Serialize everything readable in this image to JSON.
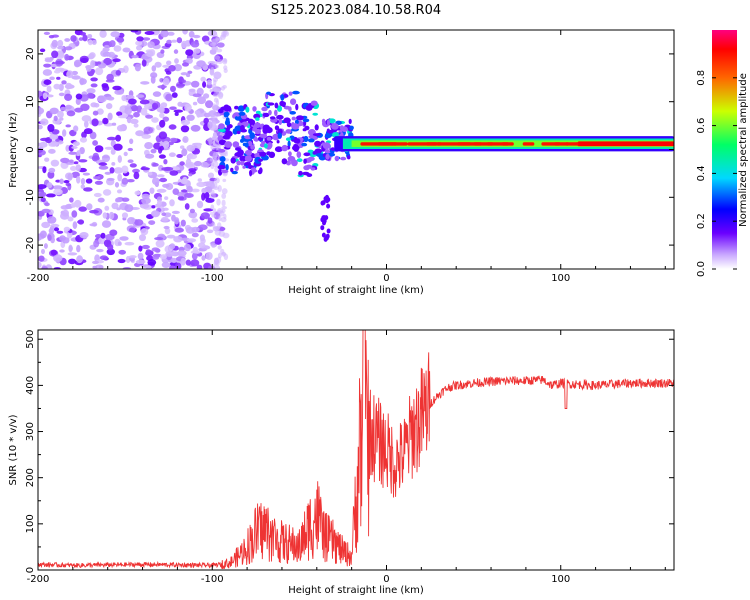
{
  "title": "S125.2023.084.10.58.R04",
  "chart_data": [
    {
      "type": "heatmap",
      "xlabel": "Height of straight line (km)",
      "ylabel": "Frequency (Hz)",
      "xlim": [
        -200,
        165
      ],
      "ylim": [
        -25,
        25
      ],
      "x_ticks": [
        -200,
        -100,
        0,
        100
      ],
      "y_ticks": [
        20,
        10,
        0,
        -10,
        -20
      ],
      "colorbar": {
        "label": "Normalized spectral amplitude",
        "range": [
          0,
          1
        ],
        "ticks": [
          0.0,
          0.2,
          0.4,
          0.6,
          0.8
        ],
        "colors": [
          "#ffffff",
          "#c9a8ff",
          "#6a00ff",
          "#0000ff",
          "#00d8ff",
          "#00ff66",
          "#ccff00",
          "#ff6600",
          "#ff0000",
          "#ff007f"
        ]
      },
      "regions": [
        {
          "x_range": [
            -200,
            -95
          ],
          "y_range": [
            -25,
            25
          ],
          "amplitude": 0.05
        },
        {
          "x_range": [
            -100,
            -20
          ],
          "y_range": [
            -8,
            12
          ],
          "amplitude": 0.2
        },
        {
          "x_range": [
            -30,
            165
          ],
          "y_range": [
            0,
            2.5
          ],
          "amplitude": 0.9
        }
      ]
    },
    {
      "type": "line",
      "xlabel": "Height of straight line (km)",
      "ylabel": "SNR (10 * v/v)",
      "xlim": [
        -200,
        165
      ],
      "ylim": [
        0,
        520
      ],
      "x_ticks": [
        -200,
        -100,
        0,
        100
      ],
      "y_ticks": [
        0,
        100,
        200,
        300,
        400,
        500
      ],
      "color": "#ee3333",
      "series": [
        {
          "x": [
            -200,
            -180,
            -160,
            -140,
            -120,
            -100,
            -90,
            -85,
            -80,
            -75,
            -70,
            -65,
            -60,
            -55,
            -50,
            -45,
            -40,
            -35,
            -30,
            -25,
            -20,
            -15,
            -12,
            -10,
            -5,
            0,
            5,
            10,
            15,
            20,
            25,
            30,
            35,
            40,
            50,
            60,
            70,
            80,
            90,
            95,
            100,
            110,
            120,
            140,
            165
          ],
          "y": [
            12,
            10,
            11,
            12,
            11,
            10,
            15,
            30,
            50,
            80,
            90,
            70,
            60,
            55,
            50,
            90,
            120,
            70,
            60,
            40,
            30,
            280,
            320,
            300,
            280,
            260,
            230,
            250,
            300,
            330,
            360,
            380,
            395,
            400,
            405,
            408,
            410,
            410,
            412,
            400,
            405,
            402,
            400,
            405,
            405
          ]
        }
      ]
    }
  ]
}
